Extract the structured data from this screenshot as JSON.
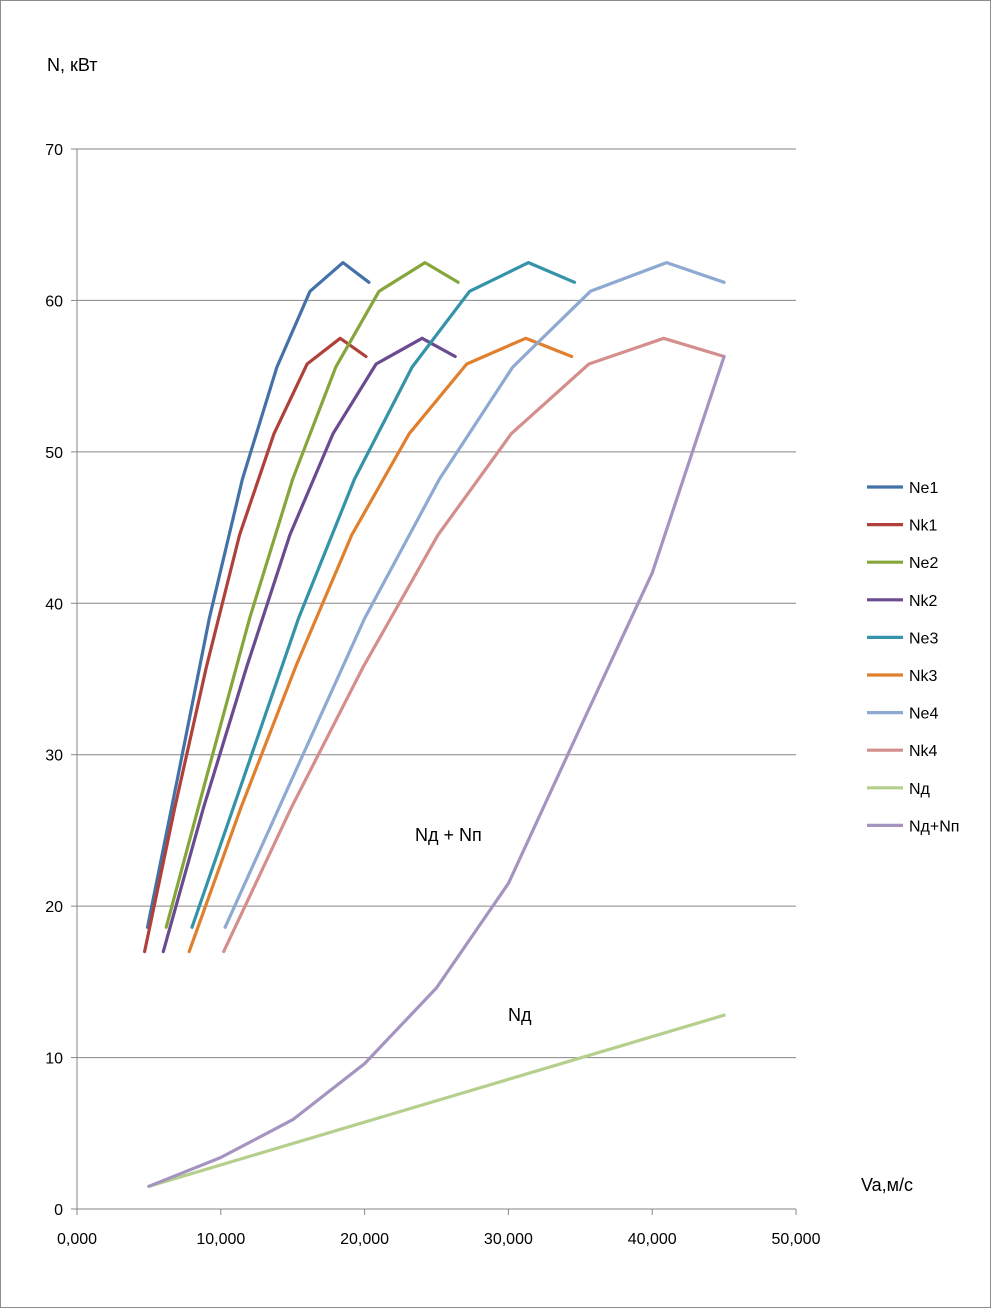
{
  "chart_data": {
    "type": "line",
    "title": "",
    "ylabel": "N, кВт",
    "xlabel": "Va,м/с",
    "xlim": [
      0,
      50
    ],
    "ylim": [
      0,
      70
    ],
    "x_ticks": [
      0,
      10,
      20,
      30,
      40,
      50
    ],
    "x_tick_labels": [
      "0,000",
      "10,000",
      "20,000",
      "30,000",
      "40,000",
      "50,000"
    ],
    "y_ticks": [
      0,
      10,
      20,
      30,
      40,
      50,
      60,
      70
    ],
    "y_tick_labels": [
      "0",
      "10",
      "20",
      "30",
      "40",
      "50",
      "60",
      "70"
    ],
    "grid": "horizontal",
    "legend_position": "right",
    "series": [
      {
        "name": "Ne1",
        "color": "#4472a8",
        "x": [
          4.9,
          7.0,
          9.2,
          11.5,
          13.9,
          16.2,
          18.5,
          20.3
        ],
        "y": [
          18.6,
          28.5,
          39.0,
          48.2,
          55.6,
          60.6,
          62.5,
          61.2
        ]
      },
      {
        "name": "Nk1",
        "color": "#b0403a",
        "x": [
          4.7,
          6.8,
          9.0,
          11.3,
          13.7,
          16.0,
          18.3,
          20.1
        ],
        "y": [
          17.0,
          26.5,
          35.8,
          44.5,
          51.2,
          55.8,
          57.5,
          56.3
        ]
      },
      {
        "name": "Ne2",
        "color": "#86a63c",
        "x": [
          6.2,
          9.0,
          12.0,
          15.0,
          18.0,
          21.0,
          24.2,
          26.5
        ],
        "y": [
          18.6,
          28.5,
          39.0,
          48.2,
          55.6,
          60.6,
          62.5,
          61.2
        ]
      },
      {
        "name": "Nk2",
        "color": "#6b4b8f",
        "x": [
          6.0,
          8.8,
          11.8,
          14.8,
          17.8,
          20.8,
          24.0,
          26.3
        ],
        "y": [
          17.0,
          26.5,
          35.8,
          44.5,
          51.2,
          55.8,
          57.5,
          56.3
        ]
      },
      {
        "name": "Ne3",
        "color": "#3593a9",
        "x": [
          8.0,
          11.6,
          15.4,
          19.3,
          23.3,
          27.3,
          31.4,
          34.6
        ],
        "y": [
          18.6,
          28.5,
          39.0,
          48.2,
          55.6,
          60.6,
          62.5,
          61.2
        ]
      },
      {
        "name": "Nk3",
        "color": "#e0802e",
        "x": [
          7.8,
          11.4,
          15.2,
          19.1,
          23.1,
          27.1,
          31.2,
          34.4
        ],
        "y": [
          17.0,
          26.5,
          35.8,
          44.5,
          51.2,
          55.8,
          57.5,
          56.3
        ]
      },
      {
        "name": "Ne4",
        "color": "#8ea9d2",
        "x": [
          10.3,
          15.0,
          20.0,
          25.2,
          30.3,
          35.7,
          41.0,
          45.0
        ],
        "y": [
          18.6,
          28.5,
          39.0,
          48.2,
          55.6,
          60.6,
          62.5,
          61.2
        ]
      },
      {
        "name": "Nk4",
        "color": "#d48e8c",
        "x": [
          10.2,
          14.9,
          19.9,
          25.1,
          30.2,
          35.6,
          40.8,
          45.0
        ],
        "y": [
          17.0,
          26.5,
          35.8,
          44.5,
          51.2,
          55.8,
          57.5,
          56.3
        ]
      },
      {
        "name": "Nд",
        "color": "#b5cf8d",
        "x": [
          5.0,
          45.0
        ],
        "y": [
          1.5,
          12.8
        ]
      },
      {
        "name": "Nд+Nп",
        "color": "#a594c0",
        "x": [
          5.0,
          10.0,
          15.0,
          20.0,
          25.0,
          30.0,
          35.0,
          40.0,
          45.0
        ],
        "y": [
          1.5,
          3.4,
          5.9,
          9.6,
          14.6,
          21.5,
          31.8,
          42.0,
          56.3
        ]
      }
    ],
    "annotations": [
      {
        "text": "Nд + Nп",
        "x": 31.5,
        "y": 24.5
      },
      {
        "text": "Nд",
        "x": 21.0,
        "y": 12.5
      }
    ]
  }
}
